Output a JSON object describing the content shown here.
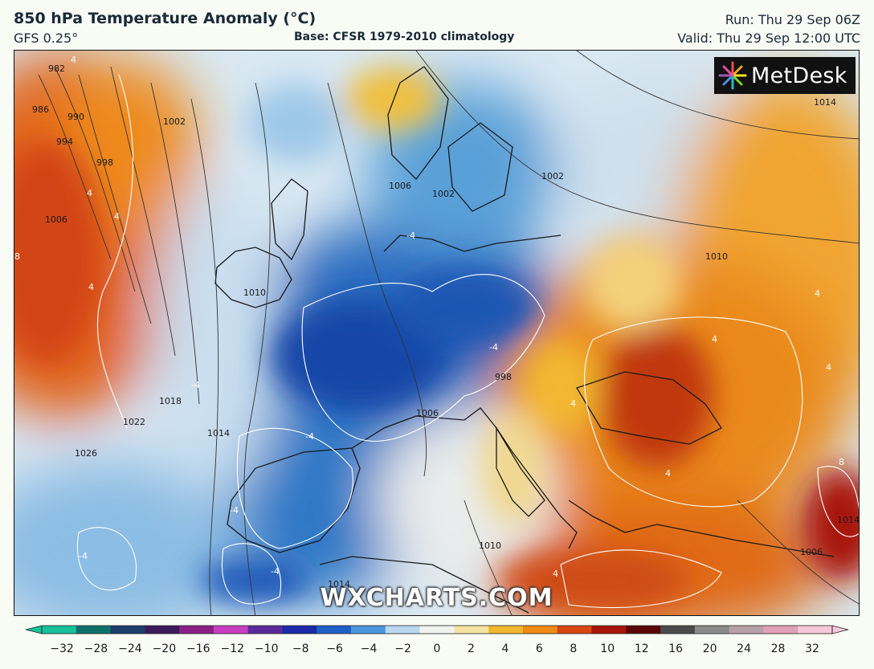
{
  "header": {
    "title": "850 hPa Temperature Anomaly (°C)",
    "model": "GFS 0.25°",
    "base": "Base: CFSR 1979-2010 climatology",
    "run": "Run: Thu 29 Sep 06Z",
    "valid": "Valid: Thu 29 Sep 12:00 UTC"
  },
  "logo": {
    "text": "MetDesk",
    "icon": "metdesk-starburst-icon"
  },
  "watermark": "WXCHARTS.COM",
  "colorbar": {
    "ticks": [
      "−32",
      "−28",
      "−24",
      "−20",
      "−16",
      "−12",
      "−10",
      "−8",
      "−6",
      "−4",
      "−2",
      "0",
      "2",
      "4",
      "6",
      "8",
      "10",
      "12",
      "16",
      "20",
      "24",
      "28",
      "32"
    ],
    "colors": [
      "#16c09a",
      "#0f6f6a",
      "#1d3d6b",
      "#3b1a5a",
      "#8a1f86",
      "#c73fc0",
      "#5a2a9a",
      "#1a2aa8",
      "#1e60c8",
      "#4a98dc",
      "#b9d8ef",
      "#f0f3f0",
      "#f4e3a0",
      "#f2b830",
      "#ef8a16",
      "#d8450f",
      "#a8140a",
      "#5a0606",
      "#4a4a4a",
      "#8a8a8a",
      "#b8a0a8",
      "#e0a0b8",
      "#f4c8d8"
    ]
  },
  "isobar_labels": [
    "982",
    "986",
    "990",
    "994",
    "998",
    "1002",
    "1006",
    "1010",
    "1018",
    "1022",
    "1026",
    "1014",
    "1006",
    "1002",
    "1002",
    "1006",
    "1010",
    "1014",
    "1010",
    "1014",
    "998",
    "1006",
    "1014"
  ],
  "anomaly_labels": [
    "4",
    "4",
    "4",
    "4",
    "-4",
    "-4",
    "-4",
    "-4",
    "-4",
    "4",
    "4",
    "4",
    "4",
    "4",
    "4",
    "-4",
    "8",
    "-4",
    "8"
  ]
}
